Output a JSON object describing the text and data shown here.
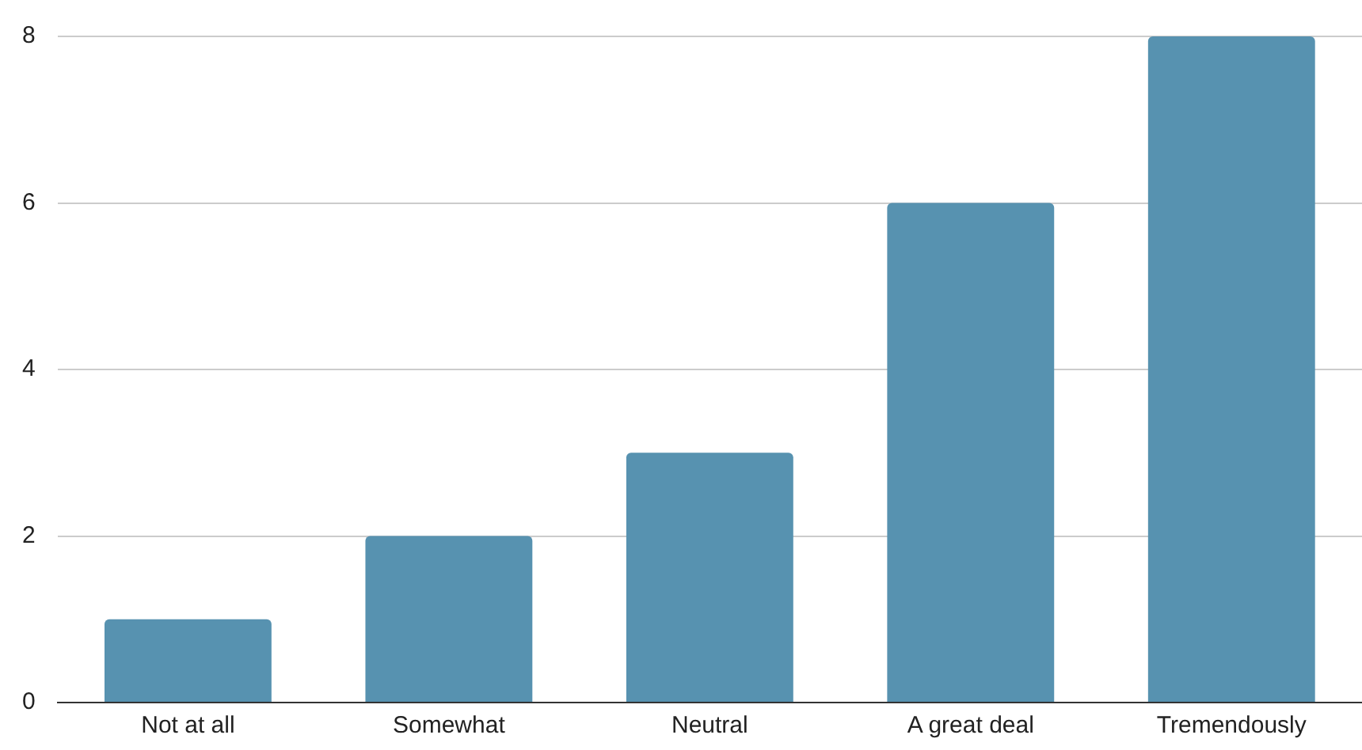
{
  "chart_data": {
    "type": "bar",
    "categories": [
      "Not at all",
      "Somewhat",
      "Neutral",
      "A great deal",
      "Tremendously"
    ],
    "values": [
      1,
      2,
      3,
      6,
      8
    ],
    "color": "#5792b0",
    "ylim": [
      0,
      8
    ],
    "yticks": [
      0,
      2,
      4,
      6,
      8
    ],
    "grid": "y"
  }
}
